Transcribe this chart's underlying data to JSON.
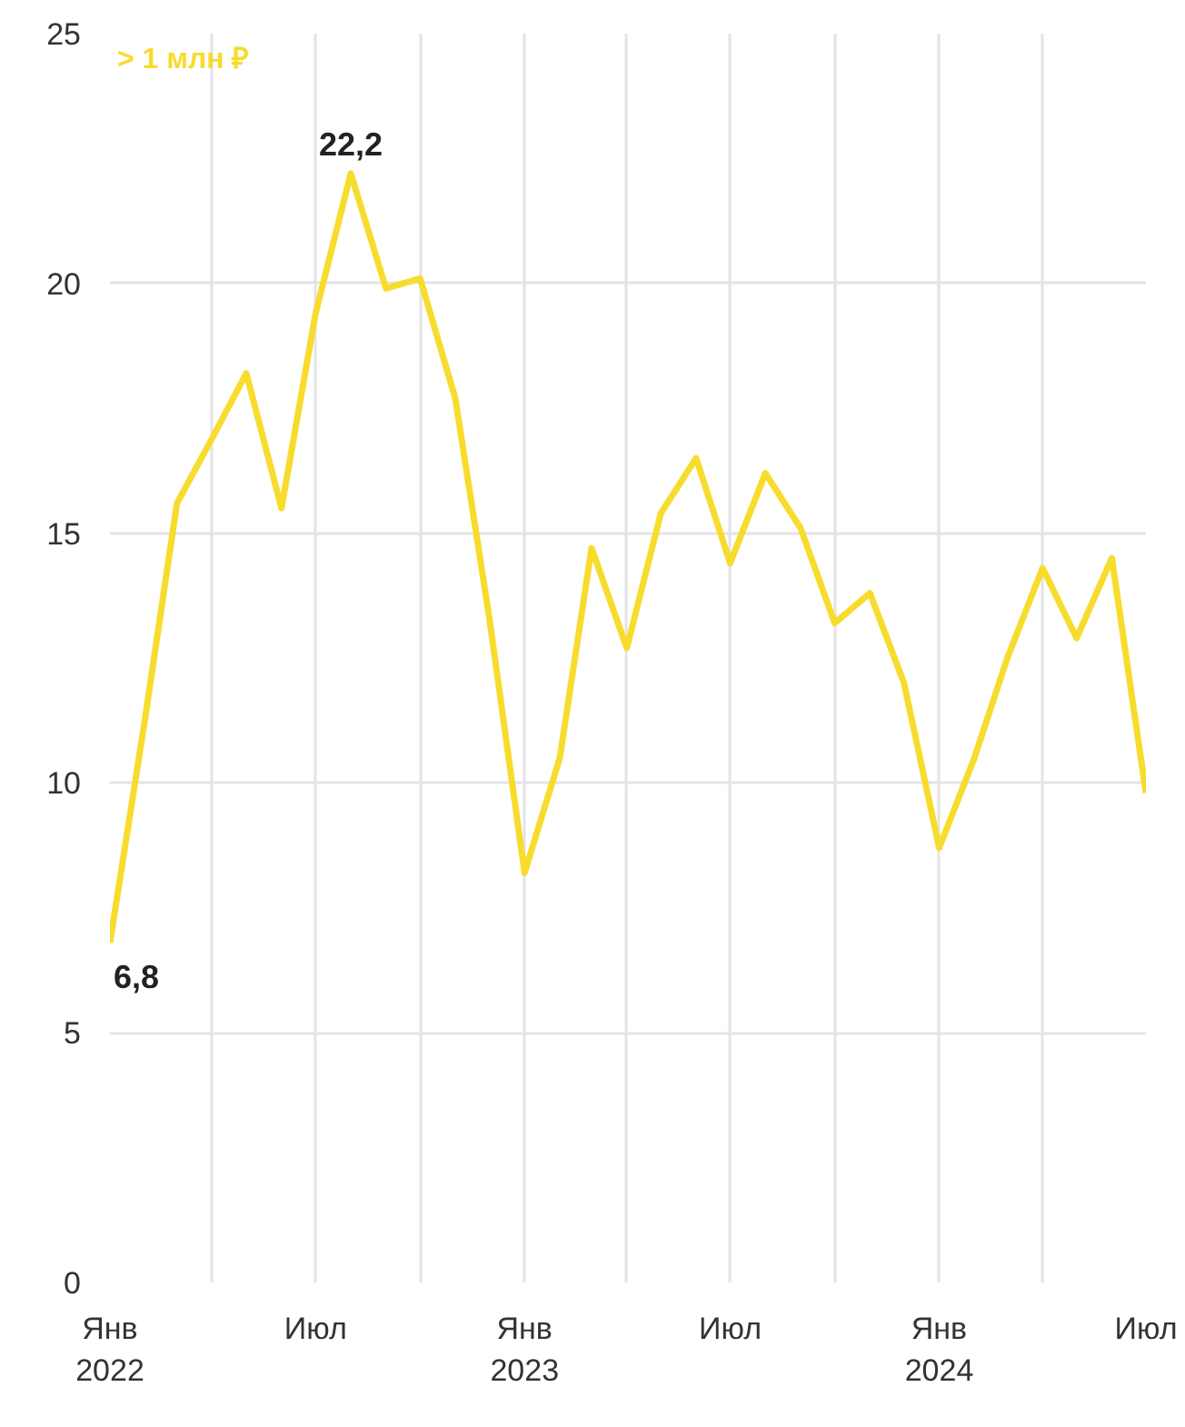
{
  "chart_data": {
    "type": "line",
    "x": [
      "2022-01",
      "2022-02",
      "2022-03",
      "2022-04",
      "2022-05",
      "2022-06",
      "2022-07",
      "2022-08",
      "2022-09",
      "2022-10",
      "2022-11",
      "2022-12",
      "2023-01",
      "2023-02",
      "2023-03",
      "2023-04",
      "2023-05",
      "2023-06",
      "2023-07",
      "2023-08",
      "2023-09",
      "2023-10",
      "2023-11",
      "2023-12",
      "2024-01",
      "2024-02",
      "2024-03",
      "2024-04",
      "2024-05",
      "2024-06",
      "2024-07"
    ],
    "series": [
      {
        "name": "> 1 млн ₽",
        "color": "#f7dc2e",
        "values": [
          6.8,
          11.3,
          15.6,
          16.9,
          18.2,
          15.5,
          19.4,
          22.2,
          19.9,
          20.1,
          17.7,
          13.3,
          8.2,
          10.5,
          14.7,
          12.7,
          15.4,
          16.5,
          14.4,
          16.2,
          15.1,
          13.2,
          13.8,
          12.0,
          8.7,
          10.5,
          12.5,
          14.3,
          12.9,
          14.5,
          9.8
        ]
      }
    ],
    "annotations": [
      {
        "text": "6,8",
        "x": "2022-01",
        "y": 6.8
      },
      {
        "text": "22,2",
        "x": "2022-08",
        "y": 22.2
      }
    ],
    "xlim": [
      "2022-01",
      "2024-07"
    ],
    "xticks": [
      {
        "value": "2022-01",
        "label": "Янв\n2022"
      },
      {
        "value": "2022-04",
        "label": null
      },
      {
        "value": "2022-07",
        "label": "Июл"
      },
      {
        "value": "2022-10",
        "label": null
      },
      {
        "value": "2023-01",
        "label": "Янв\n2023"
      },
      {
        "value": "2023-04",
        "label": null
      },
      {
        "value": "2023-07",
        "label": "Июл"
      },
      {
        "value": "2023-10",
        "label": null
      },
      {
        "value": "2024-01",
        "label": "Янв\n2024"
      },
      {
        "value": "2024-04",
        "label": null
      },
      {
        "value": "2024-07",
        "label": "Июл"
      }
    ],
    "ylim": [
      0,
      25
    ],
    "yticks": [
      0,
      5,
      10,
      15,
      20,
      25
    ],
    "grid": true,
    "marker": "none",
    "line_style": "solid"
  }
}
